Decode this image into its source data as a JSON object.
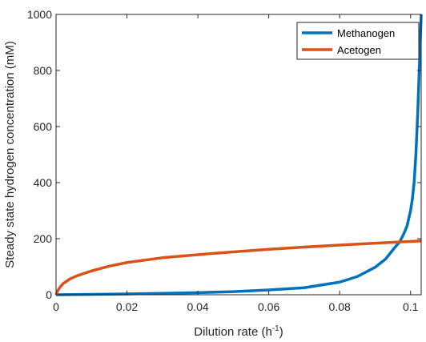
{
  "chart_data": {
    "type": "line",
    "xlabel": "Dilution rate (h",
    "xlabel_sup": "-1",
    "xlabel_end": ")",
    "ylabel": "Steady state hydrogen concentration (mM)",
    "xlim": [
      0,
      0.103
    ],
    "ylim": [
      0,
      1000
    ],
    "xticks": [
      0,
      0.02,
      0.04,
      0.06,
      0.08,
      0.1
    ],
    "xtick_labels": [
      "0",
      "0.02",
      "0.04",
      "0.06",
      "0.08",
      "0.1"
    ],
    "yticks": [
      0,
      200,
      400,
      600,
      800,
      1000
    ],
    "ytick_labels": [
      "0",
      "200",
      "400",
      "600",
      "800",
      "1000"
    ],
    "grid": false,
    "legend_position": "top-right",
    "series": [
      {
        "name": "Methanogen",
        "color": "#0072BD",
        "x": [
          0,
          0.01,
          0.02,
          0.03,
          0.04,
          0.05,
          0.06,
          0.07,
          0.08,
          0.085,
          0.09,
          0.093,
          0.095,
          0.097,
          0.098,
          0.099,
          0.1,
          0.1005,
          0.101,
          0.1015,
          0.102,
          0.1025,
          0.103
        ],
        "y": [
          0,
          1.5,
          3,
          5,
          7.5,
          11,
          17,
          25,
          45,
          65,
          98,
          128,
          160,
          190,
          215,
          245,
          300,
          340,
          400,
          500,
          640,
          820,
          1000
        ]
      },
      {
        "name": "Acetogen",
        "color": "#D95319",
        "x": [
          0,
          0.0005,
          0.001,
          0.002,
          0.004,
          0.006,
          0.01,
          0.015,
          0.02,
          0.03,
          0.04,
          0.05,
          0.06,
          0.07,
          0.08,
          0.09,
          0.1,
          0.103
        ],
        "y": [
          0,
          15,
          25,
          40,
          57,
          68,
          85,
          102,
          115,
          132,
          143,
          153,
          162,
          170,
          177,
          184,
          190,
          192
        ]
      }
    ]
  }
}
